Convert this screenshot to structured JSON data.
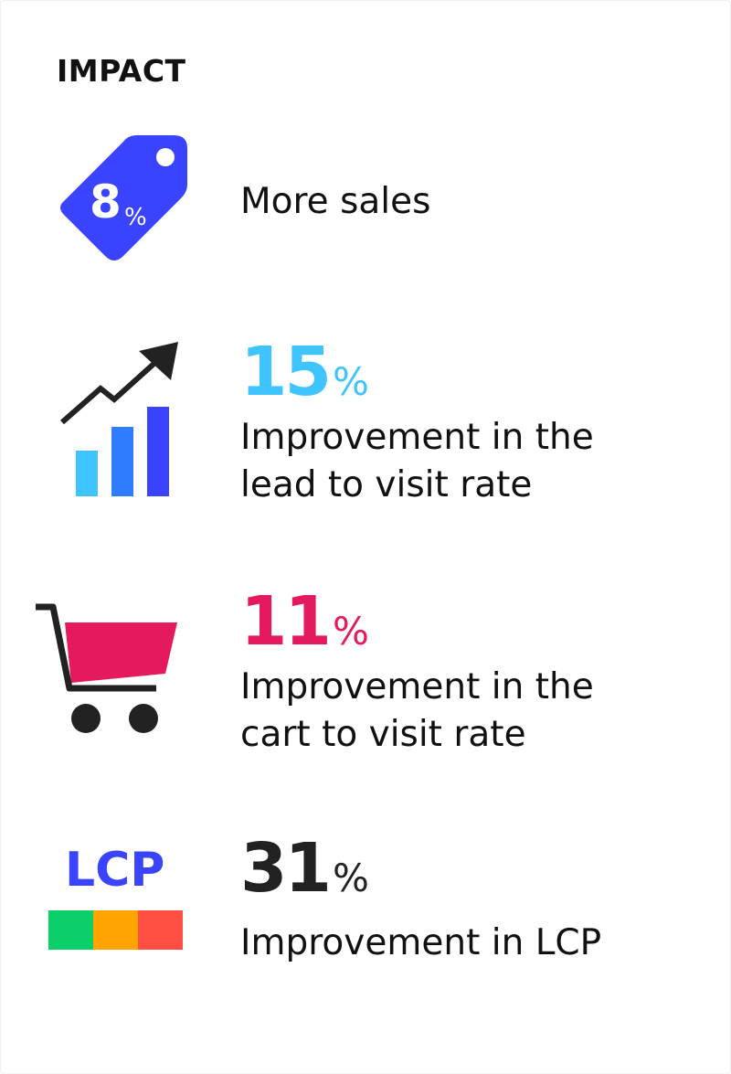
{
  "heading": "IMPACT",
  "colors": {
    "tag": "#3a44ff",
    "lead": "#40c4ff",
    "cart": "#e5195e",
    "lcp_text": "#3a44ff",
    "lcp_good": "#0ccf6a",
    "lcp_mid": "#ffa400",
    "lcp_poor": "#ff4e42",
    "dark": "#222222"
  },
  "items": [
    {
      "icon": "price-tag-icon",
      "tag_number": "8",
      "tag_percent": "%",
      "description": "More sales"
    },
    {
      "icon": "growth-chart-icon",
      "number": "15",
      "percent": "%",
      "line1": "Improvement in the",
      "line2": "lead to visit rate"
    },
    {
      "icon": "shopping-cart-icon",
      "number": "11",
      "percent": "%",
      "line1": "Improvement in the",
      "line2": "cart to visit rate"
    },
    {
      "icon": "lcp-icon",
      "icon_label": "LCP",
      "number": "31",
      "percent": "%",
      "line1": "Improvement in LCP"
    }
  ]
}
